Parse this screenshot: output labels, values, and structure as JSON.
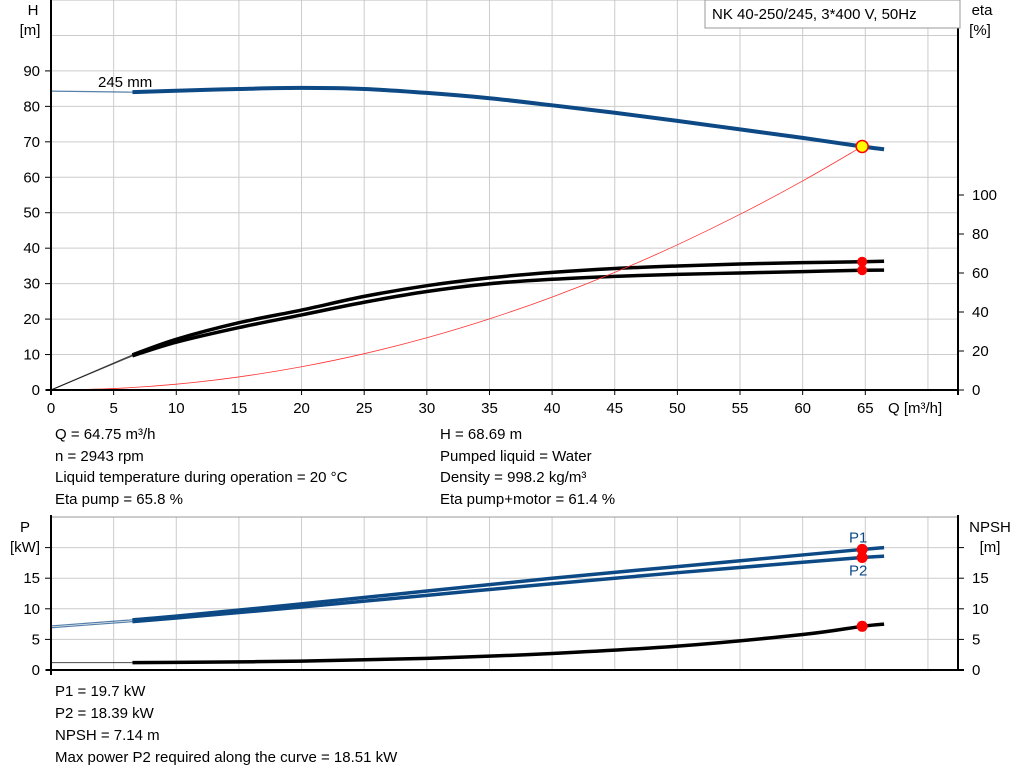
{
  "title": "NK 40-250/245, 3*400 V, 50Hz",
  "colors": {
    "head": "#0d4a85",
    "eta": "#000000",
    "system": "#ff3333",
    "power": "#0d4a85",
    "npsh": "#000000",
    "duty_point": "#ff0000",
    "duty_fill_head": "#ffff00",
    "grid": "#cccccc"
  },
  "chart_data": [
    {
      "type": "line",
      "xlabel": "Q [m³/h]",
      "xlim": [
        0,
        72.4
      ],
      "xticks": [
        0,
        5,
        10,
        15,
        20,
        25,
        30,
        35,
        40,
        45,
        50,
        55,
        60,
        65
      ],
      "ylabel": "H",
      "ylabel_unit": "[m]",
      "ylim": [
        0,
        110
      ],
      "yticks": [
        0,
        10,
        20,
        30,
        40,
        50,
        60,
        70,
        80,
        90
      ],
      "y2label": "eta",
      "y2label_unit": "[%]",
      "y2lim": [
        0,
        200
      ],
      "y2ticks": [
        0,
        20,
        40,
        60,
        80,
        100
      ],
      "grid": true,
      "series": [
        {
          "name": "245 mm",
          "axis": "left",
          "style": "head",
          "x": [
            0,
            6.5,
            10,
            15,
            20,
            25,
            30,
            35,
            40,
            45,
            50,
            55,
            60,
            64.75,
            66.5
          ],
          "y": [
            84.3,
            84.0,
            84.4,
            84.9,
            85.2,
            84.9,
            83.8,
            82.3,
            80.3,
            78.2,
            75.9,
            73.5,
            71.1,
            68.69,
            67.9
          ]
        },
        {
          "axis": "right",
          "style": "eta",
          "x": [
            0,
            6.5,
            10,
            15,
            20,
            25,
            30,
            35,
            40,
            45,
            50,
            55,
            60,
            64.75,
            66.5
          ],
          "y": [
            0,
            18,
            26,
            34.5,
            41,
            48,
            53.5,
            57.5,
            60.3,
            62.3,
            63.6,
            64.6,
            65.3,
            65.8,
            66.0
          ]
        },
        {
          "axis": "right",
          "style": "eta",
          "x": [
            0,
            6.5,
            10,
            15,
            20,
            25,
            30,
            35,
            40,
            45,
            50,
            55,
            60,
            64.75,
            66.5
          ],
          "y": [
            0,
            17.5,
            24.5,
            32,
            38.5,
            45,
            50.5,
            54.5,
            56.8,
            58.3,
            59.3,
            60.0,
            60.7,
            61.4,
            61.5
          ]
        },
        {
          "axis": "left",
          "style": "system",
          "x": [
            0,
            5,
            10,
            15,
            20,
            25,
            30,
            35,
            40,
            45,
            50,
            55,
            60,
            64.75
          ],
          "y": [
            0,
            0.41,
            1.64,
            3.69,
            6.55,
            10.24,
            14.74,
            20.07,
            26.21,
            33.17,
            40.95,
            49.55,
            58.97,
            68.69
          ]
        }
      ],
      "duty_points": [
        {
          "x": 64.75,
          "y": 68.69,
          "axis": "left",
          "kind": "head"
        },
        {
          "x": 64.75,
          "y": 65.8,
          "axis": "right",
          "kind": "eta"
        },
        {
          "x": 64.75,
          "y": 61.4,
          "axis": "right",
          "kind": "eta"
        }
      ]
    },
    {
      "type": "line",
      "xlim": [
        0,
        72.4
      ],
      "ylabel": "P",
      "ylabel_unit": "[kW]",
      "ylim": [
        0,
        25
      ],
      "yticks": [
        0,
        5,
        10,
        15,
        20
      ],
      "yticklabels": [
        "0",
        "5",
        "10",
        "15",
        ""
      ],
      "y2label": "NPSH",
      "y2label_unit": "[m]",
      "y2ticks": [
        0,
        5,
        10,
        15,
        20
      ],
      "y2ticklabels": [
        "0",
        "5",
        "10",
        "15",
        ""
      ],
      "grid": true,
      "series": [
        {
          "name": "P1",
          "style": "power",
          "x": [
            0,
            6.5,
            10,
            20,
            30,
            40,
            50,
            60,
            64.75,
            66.5
          ],
          "y": [
            7.2,
            8.2,
            8.8,
            10.8,
            12.9,
            15.0,
            16.9,
            18.8,
            19.7,
            20.0
          ]
        },
        {
          "name": "P2",
          "style": "power",
          "x": [
            0,
            6.5,
            10,
            20,
            30,
            40,
            50,
            60,
            64.75,
            66.5
          ],
          "y": [
            6.9,
            7.9,
            8.5,
            10.3,
            12.2,
            14.1,
            15.9,
            17.6,
            18.39,
            18.6
          ]
        },
        {
          "style": "npsh",
          "x": [
            0,
            6.5,
            10,
            20,
            30,
            40,
            50,
            60,
            64.75,
            66.5
          ],
          "y": [
            1.2,
            1.2,
            1.25,
            1.45,
            1.9,
            2.7,
            3.9,
            5.8,
            7.14,
            7.5
          ]
        }
      ],
      "duty_points": [
        {
          "x": 64.75,
          "y": 19.7,
          "label": "P1"
        },
        {
          "x": 64.75,
          "y": 18.39,
          "label": "P2"
        },
        {
          "x": 64.75,
          "y": 7.14
        }
      ]
    }
  ],
  "info_top": {
    "left": [
      "Q = 64.75 m³/h",
      "n = 2943 rpm",
      "Liquid temperature during operation = 20 °C",
      "Eta pump = 65.8 %"
    ],
    "right": [
      "H = 68.69 m",
      "Pumped liquid = Water",
      "Density = 998.2 kg/m³",
      "Eta pump+motor = 61.4 %"
    ]
  },
  "info_bottom": [
    "P1 = 19.7 kW",
    "P2 = 18.39 kW",
    "NPSH = 7.14 m",
    "Max power P2 required along the curve = 18.51 kW"
  ]
}
